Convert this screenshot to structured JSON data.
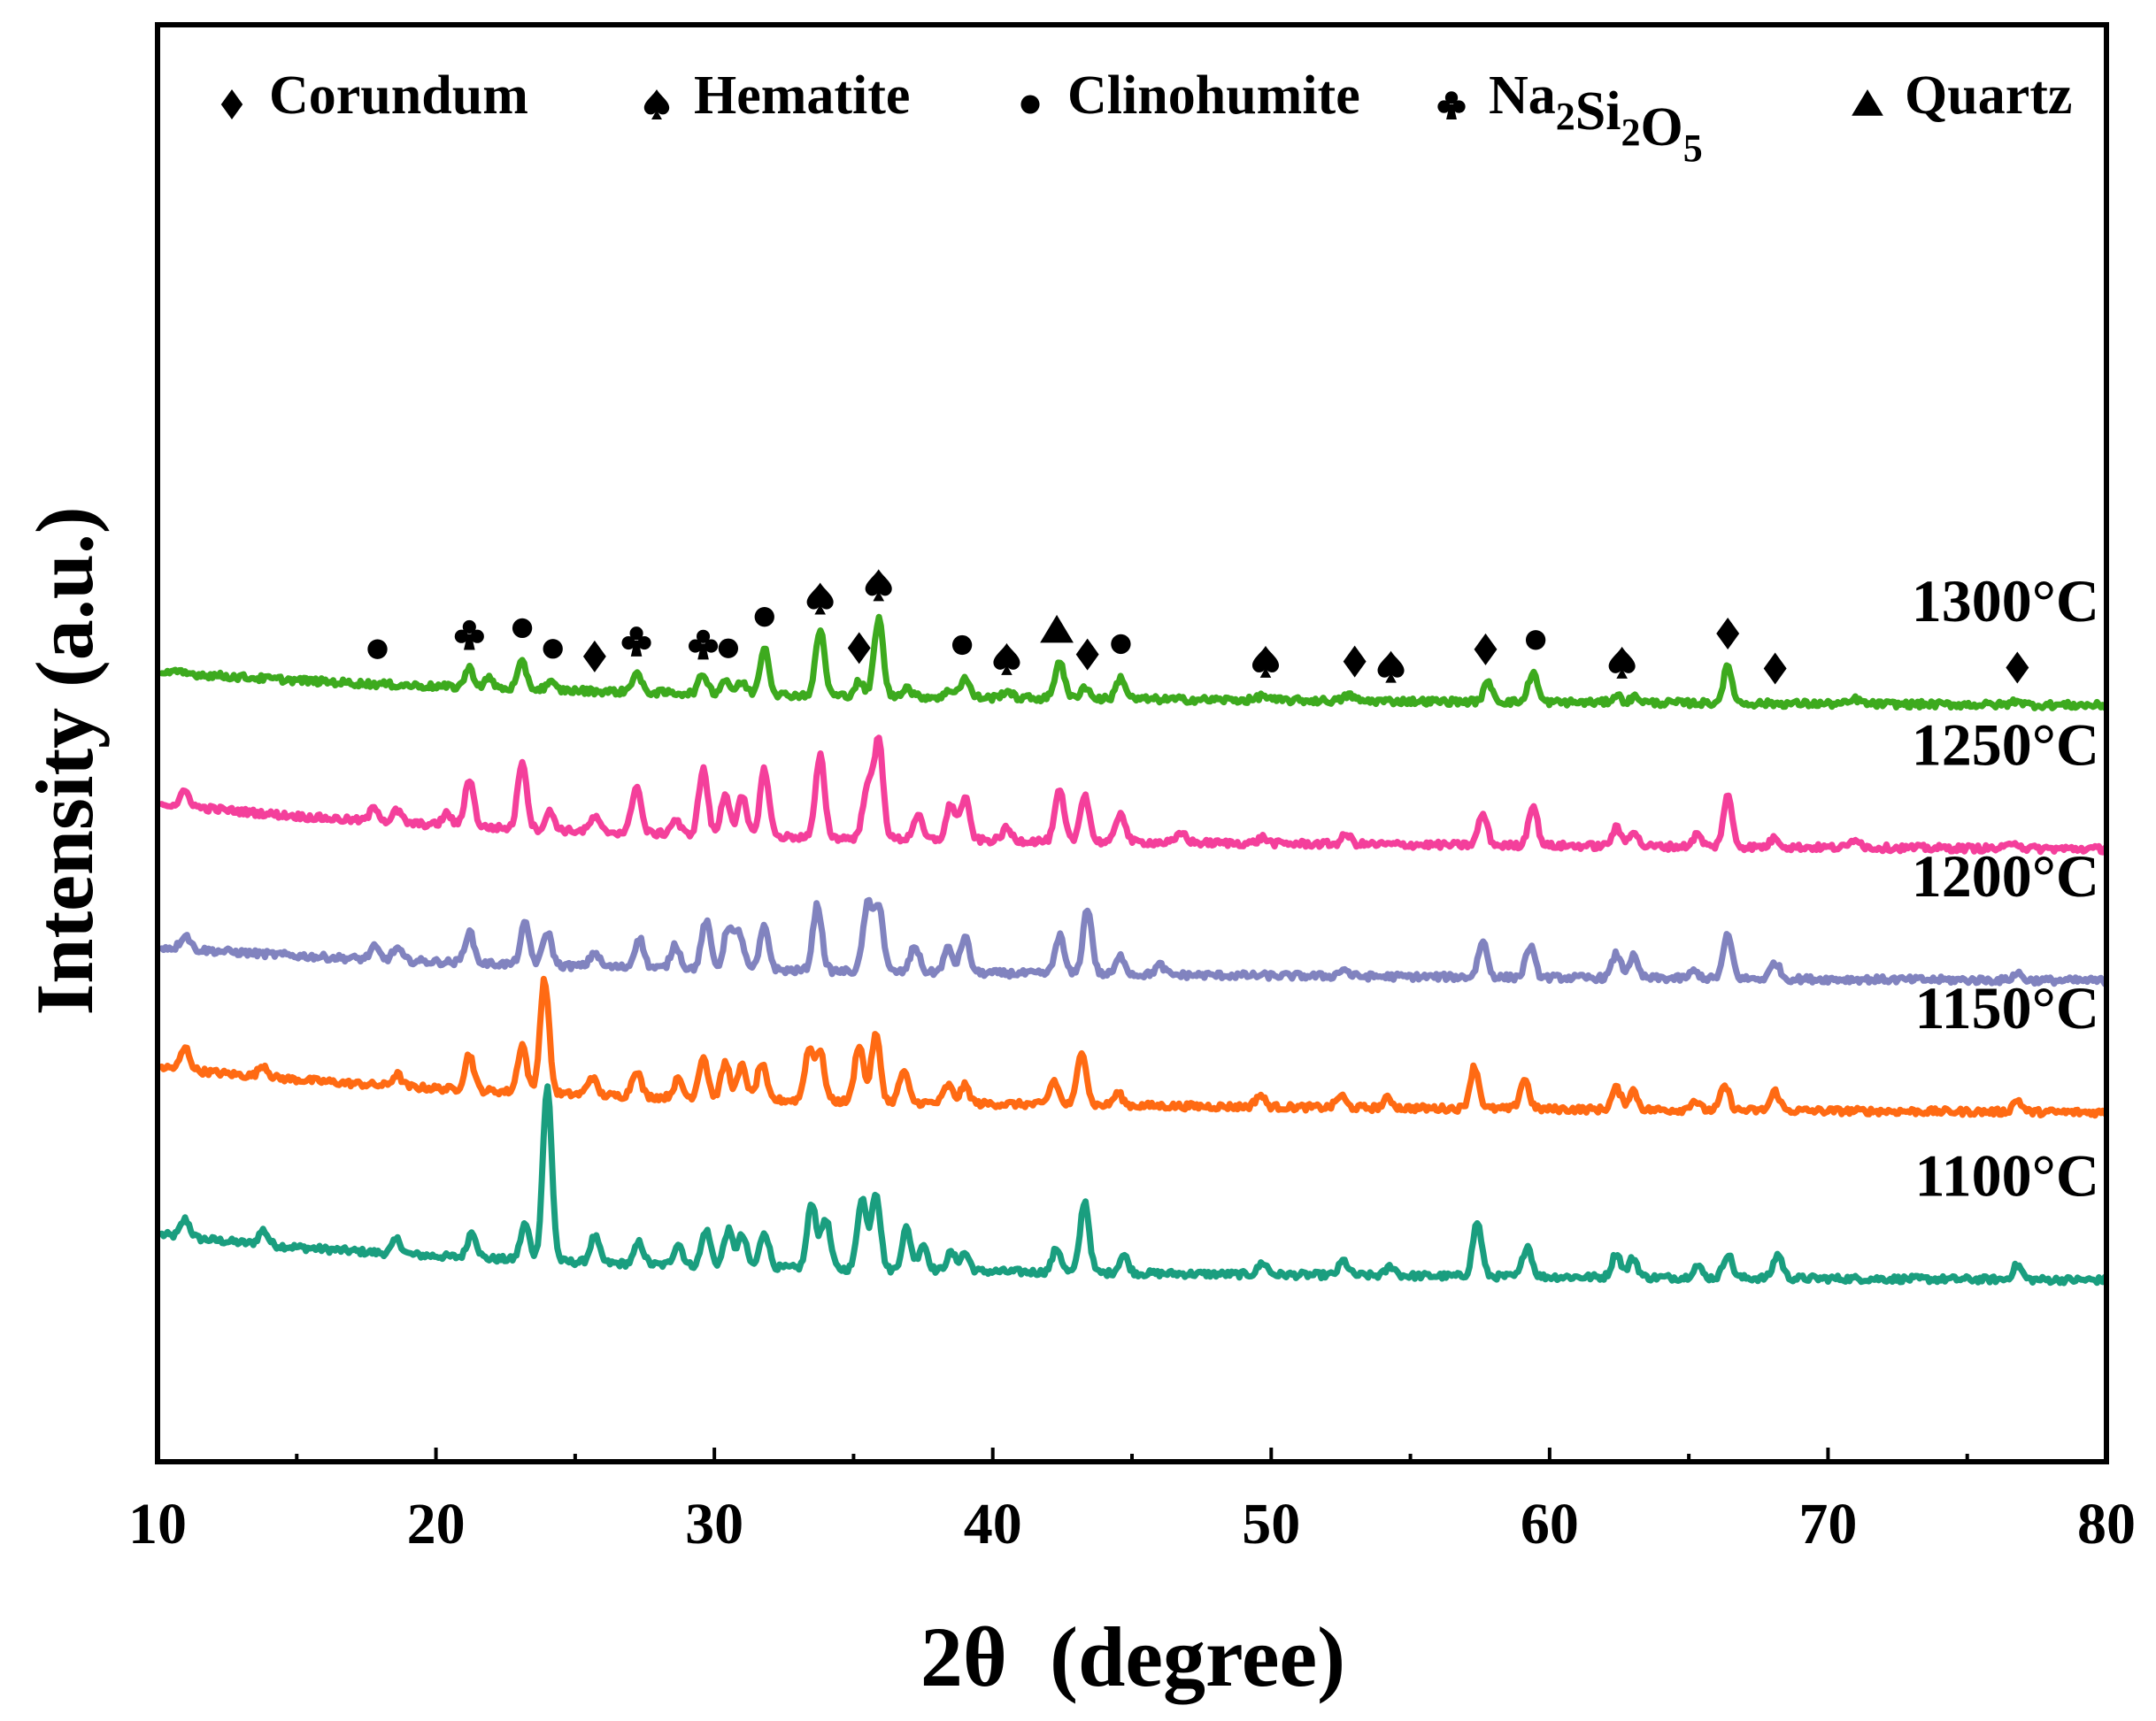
{
  "chart_data": {
    "type": "line",
    "title": "",
    "xlabel": "2θ  (degree)",
    "ylabel": "Intensity (a.u.)",
    "xlim": [
      10,
      80
    ],
    "ylim": [
      0,
      120
    ],
    "xticks": [
      10,
      20,
      30,
      40,
      50,
      60,
      70,
      80
    ],
    "grid": false,
    "legend_position": "top",
    "legend": [
      {
        "symbol": "diamond",
        "label": "Corundum"
      },
      {
        "symbol": "spade",
        "label": "Hematite"
      },
      {
        "symbol": "circle",
        "label": "Clinohumite"
      },
      {
        "symbol": "club",
        "label": "Na",
        "sub1": "2",
        "mid": "Si",
        "sub2": "2",
        "tail": "O",
        "sub3": "5"
      },
      {
        "symbol": "triangle",
        "label": "Quartz"
      }
    ],
    "series": [
      {
        "name": "1100°C",
        "color": "#1a9e7f",
        "baseline": 16,
        "decay": 3,
        "peaks": [
          [
            11,
            1.5
          ],
          [
            13.8,
            1.2
          ],
          [
            18.6,
            1.2
          ],
          [
            21.3,
            2.2
          ],
          [
            23.2,
            3
          ],
          [
            24,
            14.5
          ],
          [
            25.7,
            2.2
          ],
          [
            27.3,
            1.8
          ],
          [
            28.7,
            1.8
          ],
          [
            29.7,
            3
          ],
          [
            30.5,
            3
          ],
          [
            31,
            2.6
          ],
          [
            31.8,
            3
          ],
          [
            33.5,
            5.5
          ],
          [
            34,
            4.2
          ],
          [
            35.3,
            6
          ],
          [
            35.8,
            6.5
          ],
          [
            36.9,
            3.5
          ],
          [
            37.5,
            2.2
          ],
          [
            38.5,
            1.5
          ],
          [
            39,
            1.5
          ],
          [
            42.3,
            2
          ],
          [
            43.3,
            6
          ],
          [
            44.7,
            1.5
          ],
          [
            49.7,
            1
          ],
          [
            52.6,
            1.2
          ],
          [
            54.3,
            0.8
          ],
          [
            57.4,
            4.5
          ],
          [
            59.2,
            2.6
          ],
          [
            62.4,
            2
          ],
          [
            63,
            1.6
          ],
          [
            65.3,
            1
          ],
          [
            66.4,
            2
          ],
          [
            68.2,
            2
          ],
          [
            76.8,
            1.2
          ]
        ]
      },
      {
        "name": "1150°C",
        "color": "#ff6a13",
        "baseline": 30,
        "decay": 3,
        "peaks": [
          [
            11,
            1.8
          ],
          [
            13.8,
            1
          ],
          [
            18.6,
            1
          ],
          [
            21.2,
            3
          ],
          [
            23.1,
            4
          ],
          [
            23.9,
            9.5
          ],
          [
            25.6,
            1.5
          ],
          [
            27.2,
            2.2
          ],
          [
            28.7,
            1.5
          ],
          [
            29.6,
            3.5
          ],
          [
            30.4,
            3
          ],
          [
            31,
            2.8
          ],
          [
            31.7,
            3
          ],
          [
            33.4,
            4.2
          ],
          [
            33.8,
            4
          ],
          [
            35.2,
            4.8
          ],
          [
            35.8,
            5.6
          ],
          [
            36.8,
            2.6
          ],
          [
            38.4,
            1.5
          ],
          [
            39,
            1.5
          ],
          [
            42.2,
            2
          ],
          [
            43.2,
            4.6
          ],
          [
            44.5,
            1
          ],
          [
            49.6,
            1
          ],
          [
            52.5,
            1
          ],
          [
            54.2,
            0.8
          ],
          [
            57.3,
            3.5
          ],
          [
            59.1,
            2.5
          ],
          [
            62.4,
            1.8
          ],
          [
            63,
            1.6
          ],
          [
            65.2,
            0.8
          ],
          [
            66.3,
            2
          ],
          [
            68.1,
            1.6
          ],
          [
            76.8,
            1
          ]
        ]
      },
      {
        "name": "1200°C",
        "color": "#8183bf",
        "baseline": 41,
        "decay": 2,
        "peaks": [
          [
            11,
            1.2
          ],
          [
            17.8,
            1
          ],
          [
            18.6,
            1
          ],
          [
            21.2,
            2.6
          ],
          [
            23.2,
            3.4
          ],
          [
            24,
            2.8
          ],
          [
            25.7,
            1.2
          ],
          [
            27.3,
            2.5
          ],
          [
            28.6,
            2
          ],
          [
            29.7,
            4
          ],
          [
            30.5,
            3.5
          ],
          [
            30.9,
            3
          ],
          [
            31.8,
            3.6
          ],
          [
            33.7,
            5.5
          ],
          [
            35.5,
            5.5
          ],
          [
            35.9,
            5.6
          ],
          [
            37.2,
            2.2
          ],
          [
            38.4,
            2
          ],
          [
            39,
            3
          ],
          [
            42.4,
            3.2
          ],
          [
            43.4,
            5.5
          ],
          [
            44.6,
            1.5
          ],
          [
            46,
            0.8
          ],
          [
            52.6,
            0.6
          ],
          [
            57.6,
            3
          ],
          [
            59.3,
            2.6
          ],
          [
            62.4,
            2
          ],
          [
            63,
            1.8
          ],
          [
            65.2,
            0.6
          ],
          [
            66.4,
            3.6
          ],
          [
            68.1,
            1.4
          ],
          [
            76.8,
            0.6
          ]
        ]
      },
      {
        "name": "1250°C",
        "color": "#f43f9b",
        "baseline": 52,
        "decay": 3,
        "peaks": [
          [
            11,
            1.2
          ],
          [
            17.8,
            1.2
          ],
          [
            18.6,
            1
          ],
          [
            20.4,
            1
          ],
          [
            21.2,
            4
          ],
          [
            23.1,
            5.7
          ],
          [
            24.1,
            1.5
          ],
          [
            25.7,
            1.2
          ],
          [
            27.2,
            4
          ],
          [
            28.6,
            1.2
          ],
          [
            29.6,
            5.5
          ],
          [
            30.4,
            3.5
          ],
          [
            31,
            3.2
          ],
          [
            31.8,
            5.6
          ],
          [
            33.8,
            6.8
          ],
          [
            35.5,
            4.5
          ],
          [
            35.9,
            8.2
          ],
          [
            37.3,
            2
          ],
          [
            38.5,
            3
          ],
          [
            39,
            3.5
          ],
          [
            40.5,
            1
          ],
          [
            42.4,
            4.2
          ],
          [
            43.3,
            4
          ],
          [
            44.6,
            2.5
          ],
          [
            46.8,
            0.8
          ],
          [
            49.7,
            0.5
          ],
          [
            52.7,
            0.8
          ],
          [
            57.6,
            2.6
          ],
          [
            59.4,
            3.4
          ],
          [
            62.4,
            1.5
          ],
          [
            63,
            1.3
          ],
          [
            65.3,
            1
          ],
          [
            66.4,
            4.2
          ],
          [
            68.1,
            0.8
          ],
          [
            71,
            0.8
          ],
          [
            76.7,
            0.6
          ]
        ]
      },
      {
        "name": "1300°C",
        "color": "#3daa1e",
        "baseline": 64,
        "decay": 2,
        "peaks": [
          [
            21.2,
            1.6
          ],
          [
            21.9,
            0.8
          ],
          [
            23.1,
            2.2
          ],
          [
            24.1,
            0.6
          ],
          [
            27.2,
            1.6
          ],
          [
            29.6,
            1.6
          ],
          [
            30.4,
            1.2
          ],
          [
            31,
            1
          ],
          [
            31.8,
            4
          ],
          [
            33.8,
            5.5
          ],
          [
            35.2,
            1.2
          ],
          [
            35.9,
            6.5
          ],
          [
            36.9,
            0.8
          ],
          [
            38.5,
            0.6
          ],
          [
            39,
            1.6
          ],
          [
            40.5,
            0.6
          ],
          [
            42.4,
            3.2
          ],
          [
            43.3,
            1
          ],
          [
            44.6,
            1.8
          ],
          [
            49.7,
            0.4
          ],
          [
            52.8,
            0.5
          ],
          [
            57.8,
            1.6
          ],
          [
            59.4,
            2.5
          ],
          [
            62.4,
            0.6
          ],
          [
            63.1,
            0.5
          ],
          [
            66.4,
            3
          ],
          [
            71,
            0.4
          ],
          [
            76.8,
            0.4
          ]
        ]
      }
    ],
    "annotations": {
      "series": "1300°C",
      "markers": [
        {
          "x": 17.9,
          "symbol": "circle"
        },
        {
          "x": 21.2,
          "symbol": "club"
        },
        {
          "x": 23.1,
          "symbol": "circle"
        },
        {
          "x": 24.2,
          "symbol": "circle"
        },
        {
          "x": 25.7,
          "symbol": "diamond"
        },
        {
          "x": 27.2,
          "symbol": "club"
        },
        {
          "x": 29.6,
          "symbol": "club"
        },
        {
          "x": 30.5,
          "symbol": "circle"
        },
        {
          "x": 31.8,
          "symbol": "circle"
        },
        {
          "x": 33.8,
          "symbol": "spade"
        },
        {
          "x": 35.2,
          "symbol": "diamond"
        },
        {
          "x": 35.9,
          "symbol": "spade"
        },
        {
          "x": 38.9,
          "symbol": "circle"
        },
        {
          "x": 40.5,
          "symbol": "spade"
        },
        {
          "x": 42.3,
          "symbol": "triangle"
        },
        {
          "x": 43.4,
          "symbol": "diamond"
        },
        {
          "x": 44.6,
          "symbol": "circle"
        },
        {
          "x": 49.8,
          "symbol": "spade"
        },
        {
          "x": 53,
          "symbol": "diamond"
        },
        {
          "x": 54.3,
          "symbol": "spade"
        },
        {
          "x": 57.7,
          "symbol": "diamond"
        },
        {
          "x": 59.5,
          "symbol": "circle"
        },
        {
          "x": 62.6,
          "symbol": "spade"
        },
        {
          "x": 66.4,
          "symbol": "diamond"
        },
        {
          "x": 68.1,
          "symbol": "diamond"
        },
        {
          "x": 76.8,
          "symbol": "diamond"
        }
      ]
    }
  }
}
